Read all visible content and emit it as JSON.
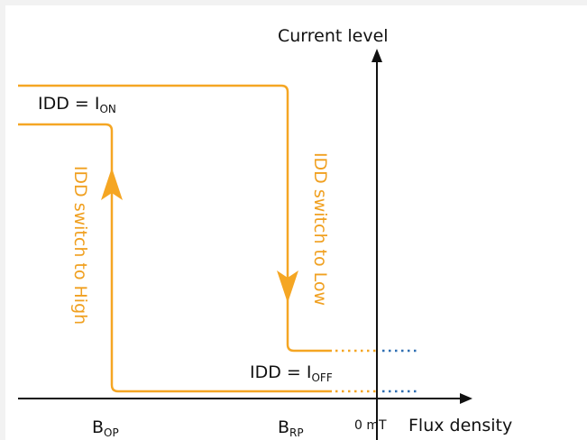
{
  "colors": {
    "orange": "#f5a623",
    "orange_text": "#f0a020",
    "axis": "#111111",
    "blue_dots": "#2f6fb3"
  },
  "axes": {
    "y_label": "Current level",
    "x_label": "Flux density",
    "zero_label": "0 mT"
  },
  "labels": {
    "idd_on_main": "IDD = I",
    "idd_on_sub": "ON",
    "idd_off_main": "IDD = I",
    "idd_off_sub": "OFF",
    "bop_main": "B",
    "bop_sub": "OP",
    "brp_main": "B",
    "brp_sub": "RP",
    "switch_high": "IDD switch to High",
    "switch_low": "IDD switch to Low"
  }
}
